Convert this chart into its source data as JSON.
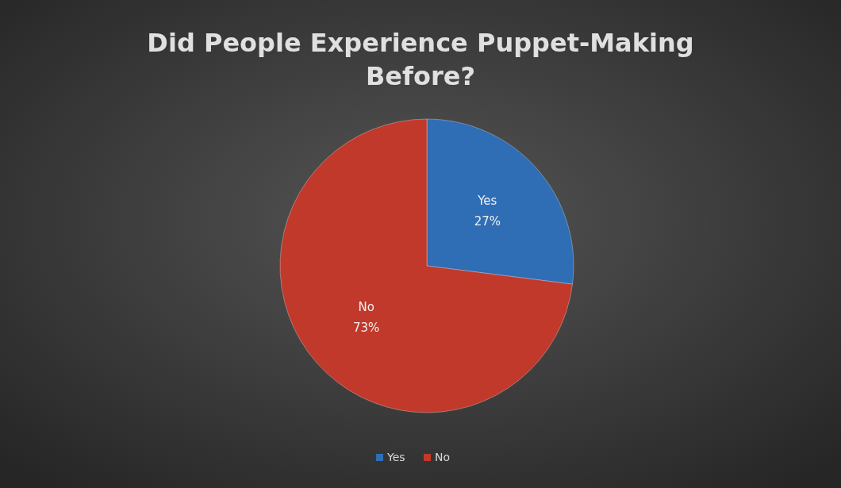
{
  "chart_data": {
    "type": "pie",
    "title": "Did People Experience Puppet-Making Before?",
    "categories": [
      "Yes",
      "No"
    ],
    "values": [
      27,
      73
    ],
    "colors": [
      "#2f6db5",
      "#c0392b"
    ],
    "value_labels": [
      "27%",
      "73%"
    ],
    "legend": "bottom"
  }
}
